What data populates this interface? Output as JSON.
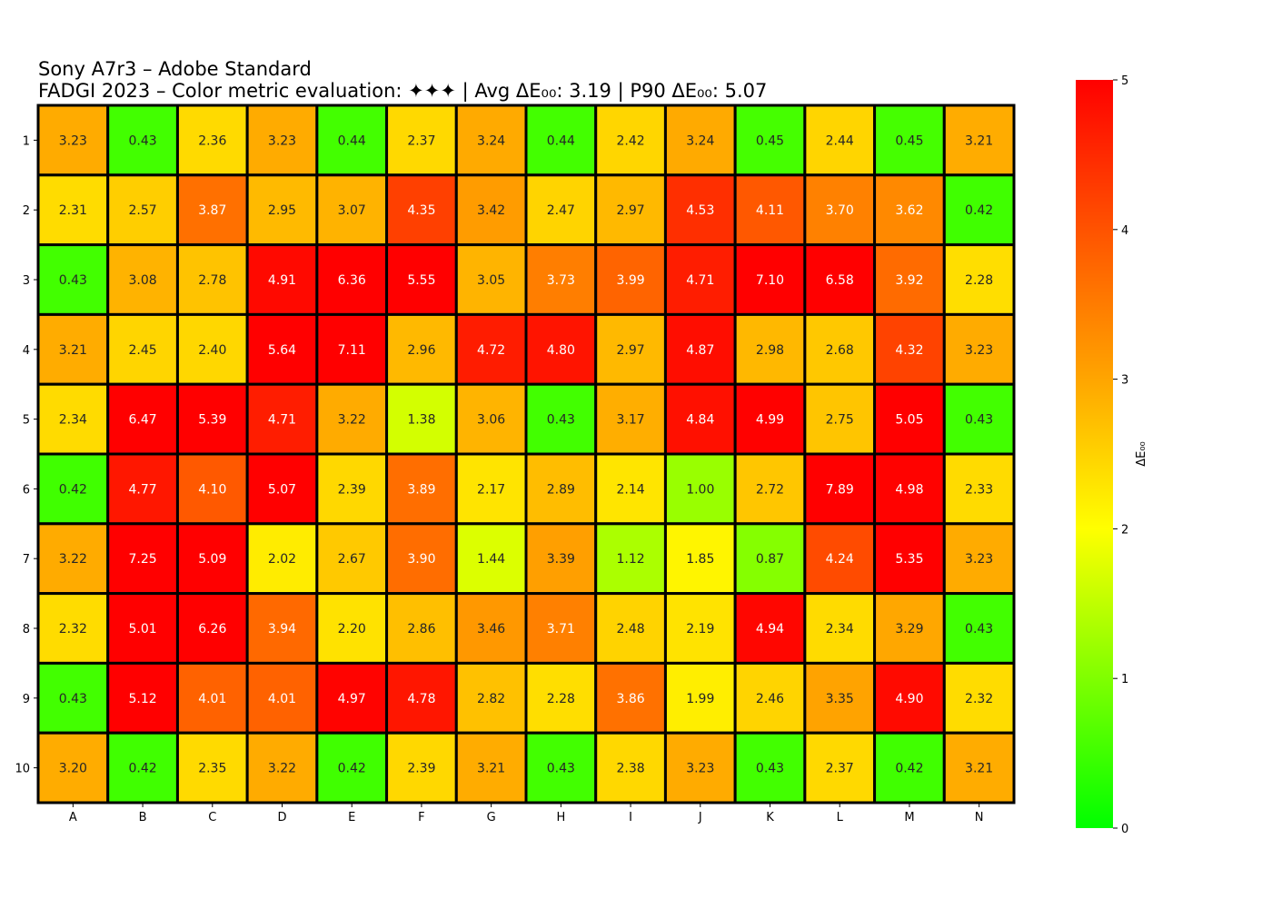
{
  "chart_data": {
    "type": "heatmap",
    "title": "Sony A7r3 – Adobe Standard",
    "subtitle": "FADGI 2023 – Color metric evaluation: ✦✦✦ | Avg ΔE₀₀: 3.19 | P90 ΔE₀₀: 5.07",
    "columns": [
      "A",
      "B",
      "C",
      "D",
      "E",
      "F",
      "G",
      "H",
      "I",
      "J",
      "K",
      "L",
      "M",
      "N"
    ],
    "rows": [
      "1",
      "2",
      "3",
      "4",
      "5",
      "6",
      "7",
      "8",
      "9",
      "10"
    ],
    "values": [
      [
        3.23,
        0.43,
        2.36,
        3.23,
        0.44,
        2.37,
        3.24,
        0.44,
        2.42,
        3.24,
        0.45,
        2.44,
        0.45,
        3.21
      ],
      [
        2.31,
        2.57,
        3.87,
        2.95,
        3.07,
        4.35,
        3.42,
        2.47,
        2.97,
        4.53,
        4.11,
        3.7,
        3.62,
        0.42
      ],
      [
        0.43,
        3.08,
        2.78,
        4.91,
        6.36,
        5.55,
        3.05,
        3.73,
        3.99,
        4.71,
        7.1,
        6.58,
        3.92,
        2.28
      ],
      [
        3.21,
        2.45,
        2.4,
        5.64,
        7.11,
        2.96,
        4.72,
        4.8,
        2.97,
        4.87,
        2.98,
        2.68,
        4.32,
        3.23
      ],
      [
        2.34,
        6.47,
        5.39,
        4.71,
        3.22,
        1.38,
        3.06,
        0.43,
        3.17,
        4.84,
        4.99,
        2.75,
        5.05,
        0.43
      ],
      [
        0.42,
        4.77,
        4.1,
        5.07,
        2.39,
        3.89,
        2.17,
        2.89,
        2.14,
        1.0,
        2.72,
        7.89,
        4.98,
        2.33
      ],
      [
        3.22,
        7.25,
        5.09,
        2.02,
        2.67,
        3.9,
        1.44,
        3.39,
        1.12,
        1.85,
        0.87,
        4.24,
        5.35,
        3.23
      ],
      [
        2.32,
        5.01,
        6.26,
        3.94,
        2.2,
        2.86,
        3.46,
        3.71,
        2.48,
        2.19,
        4.94,
        2.34,
        3.29,
        0.43
      ],
      [
        0.43,
        5.12,
        4.01,
        4.01,
        4.97,
        4.78,
        2.82,
        2.28,
        3.86,
        1.99,
        2.46,
        3.35,
        4.9,
        2.32
      ],
      [
        3.2,
        0.42,
        2.35,
        3.22,
        0.42,
        2.39,
        3.21,
        0.43,
        2.38,
        3.23,
        0.43,
        2.37,
        0.42,
        3.21
      ]
    ],
    "colorbar": {
      "label": "ΔE₀₀",
      "range": [
        0,
        5
      ],
      "ticks": [
        0,
        1,
        2,
        3,
        4,
        5
      ],
      "colors": [
        "#00ff00",
        "#ffff00",
        "#ffa500",
        "#ff0000"
      ]
    },
    "grid": true
  }
}
